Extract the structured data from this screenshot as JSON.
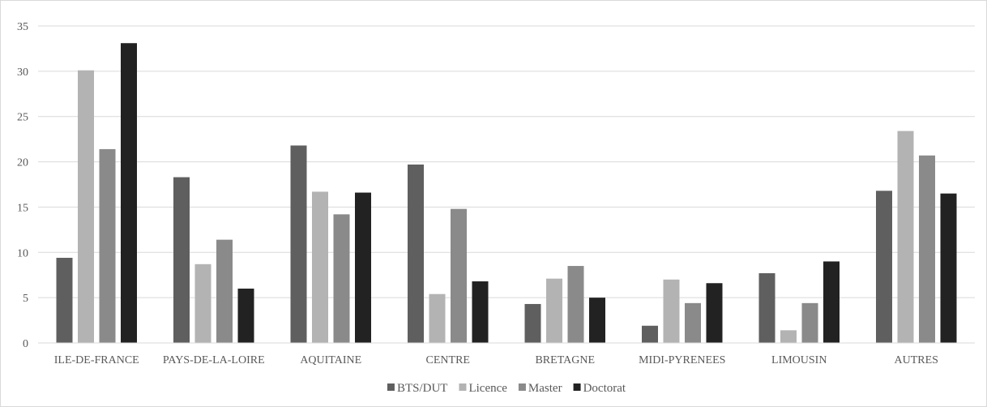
{
  "chart_data": {
    "type": "bar",
    "categories": [
      "ILE-DE-FRANCE",
      "PAYS-DE-LA-LOIRE",
      "AQUITAINE",
      "CENTRE",
      "BRETAGNE",
      "MIDI-PYRENEES",
      "LIMOUSIN",
      "AUTRES"
    ],
    "series": [
      {
        "name": "BTS/DUT",
        "color": "#5f5f5f",
        "values": [
          9.4,
          18.3,
          21.8,
          19.7,
          4.3,
          1.9,
          7.7,
          16.8
        ]
      },
      {
        "name": "Licence",
        "color": "#b3b3b3",
        "values": [
          30.1,
          8.7,
          16.7,
          5.4,
          7.1,
          7.0,
          1.4,
          23.4
        ]
      },
      {
        "name": "Master",
        "color": "#8a8a8a",
        "values": [
          21.4,
          11.4,
          14.2,
          14.8,
          8.5,
          4.4,
          4.4,
          20.7
        ]
      },
      {
        "name": "Doctorat",
        "color": "#222222",
        "values": [
          33.1,
          6.0,
          16.6,
          6.8,
          5.0,
          6.6,
          9.0,
          16.5
        ]
      }
    ],
    "ylim": [
      0,
      35
    ],
    "yticks": [
      0,
      5,
      10,
      15,
      20,
      25,
      30,
      35
    ],
    "grid": true,
    "legend": "bottom",
    "title": "",
    "xlabel": "",
    "ylabel": ""
  },
  "colors": {
    "gridline": "#d9d9d9",
    "axis": "#d9d9d9",
    "text": "#595959"
  }
}
